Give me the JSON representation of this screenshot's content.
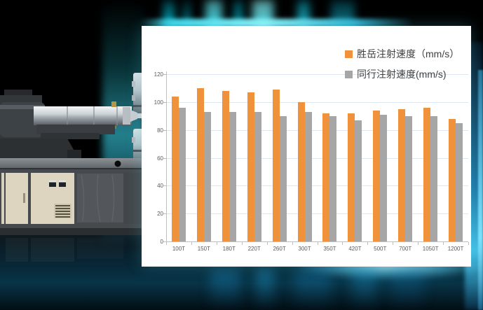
{
  "scene": {
    "machine_alt": "injection-molding-machine",
    "colors": {
      "background": "#000000",
      "cyan_streak": "#45e0f2",
      "teal_glow": "#2f99ab",
      "right_edge_glow": "#2a96c8",
      "panel_background": "#ffffff"
    }
  },
  "chart_data": {
    "type": "bar",
    "title": "",
    "xlabel": "",
    "ylabel": "",
    "categories": [
      "100T",
      "150T",
      "180T",
      "220T",
      "260T",
      "300T",
      "350T",
      "420T",
      "500T",
      "700T",
      "1050T",
      "1200T"
    ],
    "series": [
      {
        "name": "胜岳注射速度（mm/s）",
        "color": "#F0913C",
        "values": [
          104,
          110,
          108,
          107,
          109,
          100,
          92,
          92,
          94,
          95,
          96,
          88
        ]
      },
      {
        "name": "同行注射速度(mm/s)",
        "color": "#A6A6A6",
        "values": [
          96,
          93,
          93,
          93,
          90,
          93,
          90,
          87,
          91,
          90,
          90,
          85
        ]
      }
    ],
    "ylim": [
      0,
      120
    ],
    "yticks": [
      0,
      20,
      40,
      60,
      80,
      100,
      120
    ],
    "grid": true,
    "legend_position": "top-right",
    "axis_color": "#bfbfbf",
    "gridline_color": "#dde7f1",
    "tick_label_color": "#595959"
  }
}
